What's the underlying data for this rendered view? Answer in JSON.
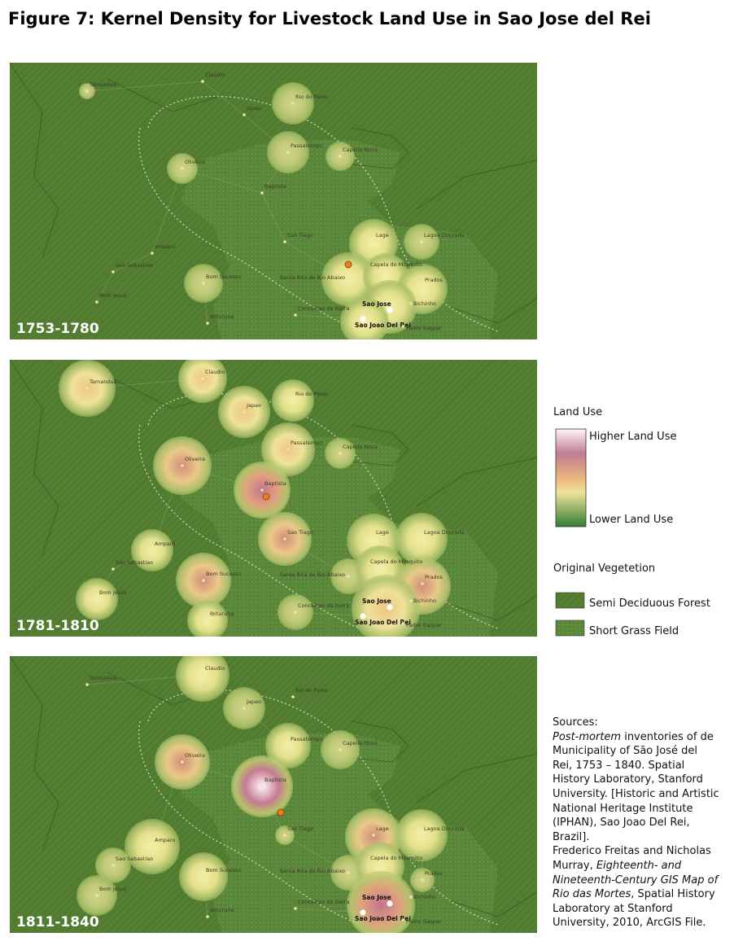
{
  "title": "Figure 7: Kernel Density for Livestock Land Use in Sao Jose del Rei",
  "maps": [
    {
      "period": "1753-1780"
    },
    {
      "period": "1781-1810"
    },
    {
      "period": "1811-1840"
    }
  ],
  "places": [
    "Tamandua",
    "Claudio",
    "Japao",
    "Rio do Peixe",
    "Passatempo",
    "Capella Nova",
    "Oliveira",
    "Baptista",
    "Amparo",
    "Sao Sebastiao",
    "Bom Jesus",
    "Bom Sucesso",
    "Ibituruna",
    "Sao Tiago",
    "Lage",
    "Lagoa Dourada",
    "Capela do Mosquito",
    "Santa Rita do Rio Abaixo",
    "Prados",
    "Conceicao da Barra",
    "Sao Jose",
    "Bichinho",
    "Sao Joao Del Rei",
    "Padre Gaspar"
  ],
  "legend": {
    "land_use": {
      "title": "Land Use",
      "high": "Higher Land Use",
      "low": "Lower Land Use"
    },
    "vegetation": {
      "title": "Original Vegetetion",
      "items": [
        "Semi Deciduous Forest",
        "Short Grass Field"
      ]
    }
  },
  "sources": {
    "heading": "Sources:",
    "paragraphs": [
      [
        {
          "text": "Post-mortem",
          "italic": true
        },
        {
          "text": " inventories of de Municipality of São José del Rei, 1753 – 1840. Spatial History Laboratory, Stanford University. [Historic and Artistic National Heritage Institute (IPHAN), Sao Joao Del Rei, Brazil].",
          "italic": false
        }
      ],
      [
        {
          "text": "Frederico Freitas and Nicholas Murray, ",
          "italic": false
        },
        {
          "text": "Eighteenth- and Nineteenth-Century GIS Map of Rio das Mortes",
          "italic": true
        },
        {
          "text": ", Spatial History Laboratory at Stanford University, 2010, ArcGIS File.",
          "italic": false
        }
      ]
    ]
  }
}
